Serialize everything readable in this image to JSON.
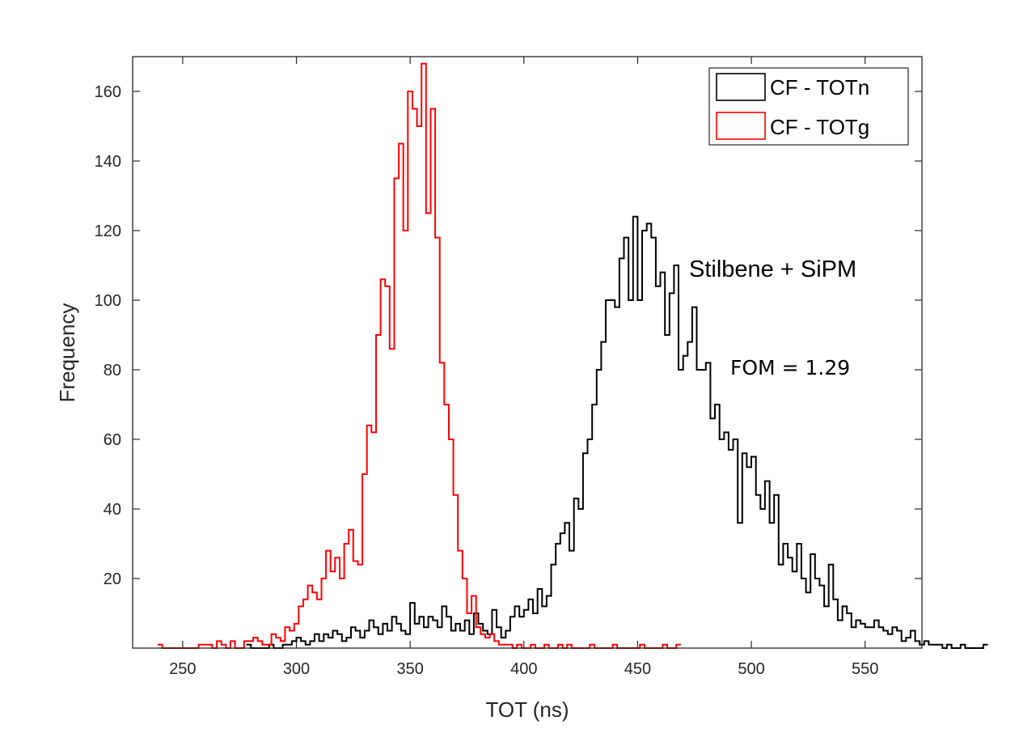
{
  "chart_data": {
    "type": "histogram",
    "title": "",
    "xlabel": "TOT (ns)",
    "ylabel": "Frequency",
    "xlim": [
      228,
      575
    ],
    "ylim": [
      0,
      170
    ],
    "xticks": [
      250,
      300,
      350,
      400,
      450,
      500,
      550
    ],
    "yticks": [
      20,
      40,
      60,
      80,
      100,
      120,
      140,
      160
    ],
    "bin_width": 2,
    "legend": {
      "placement": "top-right",
      "entries": [
        "CF - TOTn",
        "CF - TOTg"
      ]
    },
    "annotations": [
      "Stilbene + SiPM",
      "FOM = 1.29"
    ],
    "series": [
      {
        "name": "CF - TOTn",
        "color": "#000000",
        "x_start": 278,
        "counts": [
          1,
          0,
          0,
          0,
          0,
          1,
          0,
          0,
          1,
          1,
          2,
          3,
          2,
          1,
          2,
          4,
          2,
          4,
          3,
          5,
          4,
          2,
          3,
          6,
          5,
          3,
          5,
          8,
          6,
          4,
          7,
          5,
          9,
          7,
          5,
          4,
          13,
          7,
          9,
          6,
          9,
          8,
          6,
          12,
          9,
          5,
          7,
          5,
          8,
          4,
          10,
          7,
          5,
          4,
          11,
          6,
          3,
          5,
          9,
          12,
          9,
          11,
          14,
          10,
          17,
          12,
          15,
          24,
          30,
          33,
          36,
          28,
          43,
          40,
          56,
          60,
          70,
          80,
          88,
          100,
          100,
          98,
          112,
          118,
          100,
          124,
          100,
          120,
          122,
          118,
          104,
          108,
          90,
          102,
          110,
          80,
          84,
          88,
          98,
          80,
          80,
          82,
          66,
          70,
          60,
          62,
          57,
          60,
          36,
          56,
          52,
          55,
          44,
          40,
          48,
          36,
          44,
          24,
          30,
          26,
          22,
          30,
          20,
          16,
          27,
          20,
          18,
          12,
          24,
          14,
          8,
          12,
          10,
          6,
          8,
          7,
          6,
          6,
          8,
          6,
          5,
          4,
          6,
          5,
          2,
          3,
          5,
          2,
          1,
          2,
          1,
          1,
          1,
          0,
          1,
          0,
          0,
          1,
          0,
          0,
          0,
          0,
          1
        ]
      },
      {
        "name": "CF - TOTg",
        "color": "#ff0000",
        "x_start": 239,
        "counts": [
          1,
          0,
          0,
          0,
          0,
          0,
          0,
          0,
          0,
          1,
          1,
          1,
          0,
          2,
          1,
          0,
          2,
          0,
          0,
          2,
          2,
          3,
          2,
          1,
          1,
          4,
          3,
          2,
          6,
          5,
          7,
          12,
          14,
          18,
          16,
          14,
          20,
          28,
          22,
          26,
          20,
          30,
          34,
          25,
          24,
          50,
          64,
          62,
          90,
          106,
          104,
          86,
          135,
          145,
          120,
          160,
          155,
          150,
          168,
          125,
          155,
          118,
          82,
          70,
          60,
          44,
          28,
          20,
          10,
          15,
          6,
          4,
          3,
          4,
          2,
          1,
          1,
          1,
          0,
          1,
          0,
          0,
          1,
          0,
          0,
          1,
          0,
          0,
          1,
          0,
          1,
          0,
          0,
          0,
          0,
          1,
          0,
          0,
          0,
          0,
          1,
          0,
          0,
          0,
          0,
          0,
          1,
          0,
          0,
          0,
          0,
          1,
          0,
          0,
          1
        ]
      }
    ]
  }
}
